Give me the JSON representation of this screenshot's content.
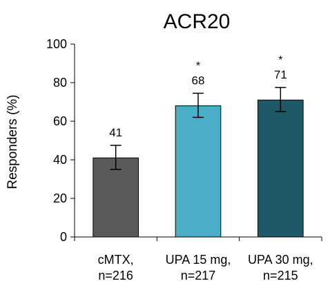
{
  "chart_data": {
    "type": "bar",
    "title": "ACR20",
    "ylabel": "Responders (%)",
    "xlabel": "",
    "ylim": [
      0,
      100
    ],
    "yticks": [
      0,
      20,
      40,
      60,
      80,
      100
    ],
    "categories": [
      [
        "cMTX,",
        "n=216"
      ],
      [
        "UPA 15 mg,",
        "n=217"
      ],
      [
        "UPA 30 mg,",
        "n=215"
      ]
    ],
    "values": [
      41,
      68,
      71
    ],
    "error_low": [
      35,
      62,
      65
    ],
    "error_high": [
      47.5,
      74.5,
      77.5
    ],
    "data_labels": [
      "41",
      "68",
      "71"
    ],
    "significance": [
      "",
      "*",
      "*"
    ],
    "colors": [
      "#5a5a5a",
      "#4aaec9",
      "#1f5867"
    ],
    "grid": false,
    "legend": "none"
  }
}
